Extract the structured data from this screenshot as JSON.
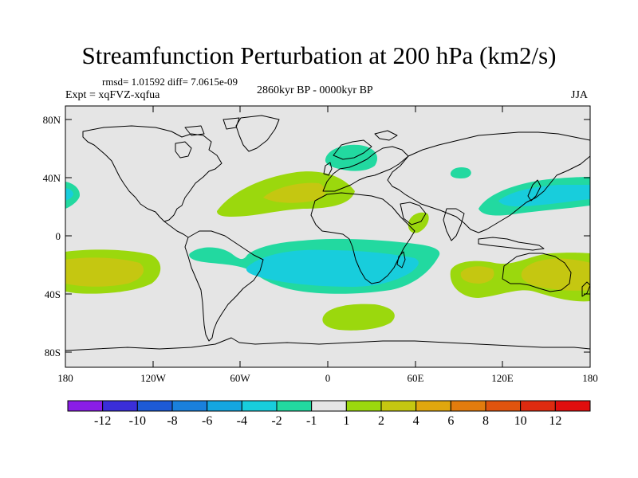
{
  "header": {
    "title": "Streamfunction Perturbation at 200 hPa (km2/s)",
    "stats": "rmsd= 1.01592 diff= 7.0615e-09",
    "experiment": "Expt = xqFVZ-xqfua",
    "period": "2860kyr BP - 0000kyr BP",
    "season": "JJA"
  },
  "map": {
    "lat_ticks": [
      "80N",
      "40N",
      "0",
      "40S",
      "80S"
    ],
    "lon_ticks": [
      "180",
      "120W",
      "60W",
      "0",
      "60E",
      "120E",
      "180"
    ]
  },
  "colorbar": {
    "labels": [
      "-12",
      "-10",
      "-8",
      "-6",
      "-4",
      "-2",
      "-1",
      "1",
      "2",
      "4",
      "6",
      "8",
      "10",
      "12"
    ],
    "colors": [
      "#8a1de6",
      "#3a2ed9",
      "#1d5ad6",
      "#1a80dc",
      "#14a6e0",
      "#18cddc",
      "#22d9a0",
      "#e5e5e5",
      "#9bd80d",
      "#c5c711",
      "#e0a70e",
      "#e37c0d",
      "#e0540e",
      "#de2b10",
      "#e00e0e"
    ]
  },
  "colors": {
    "ocean_background": "#e5e5e5",
    "coastline": "#000000"
  }
}
